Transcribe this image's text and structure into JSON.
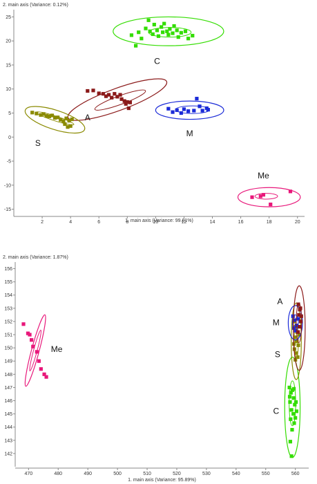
{
  "chart_data": [
    {
      "type": "scatter",
      "xlabel": "1. main axis (Variance: 99.81%)",
      "ylabel": "2. main axis (Variance: 0.12%)",
      "xlim": [
        0,
        20.5
      ],
      "ylim": [
        -16.5,
        26.5
      ],
      "xticks": [
        2,
        4,
        6,
        8,
        10,
        12,
        14,
        16,
        18,
        20
      ],
      "yticks": [
        -15,
        -10,
        -5,
        0,
        5,
        10,
        15,
        20,
        25
      ],
      "series": [
        {
          "name": "C",
          "color": "#33dd00",
          "ellipse": {
            "cx": 10.9,
            "cy": 22.0,
            "rx": 3.9,
            "ry": 3.0,
            "angle": 0
          },
          "ellipse_inner": {
            "cx": 11.0,
            "cy": 21.8,
            "rx": 1.5,
            "ry": 1.0,
            "angle": 0
          },
          "label_pos": [
            10.1,
            15.2
          ],
          "points": [
            [
              8.3,
              21.2
            ],
            [
              8.6,
              19.0
            ],
            [
              8.8,
              21.8
            ],
            [
              9.0,
              20.5
            ],
            [
              9.3,
              22.6
            ],
            [
              9.5,
              24.3
            ],
            [
              9.6,
              22.0
            ],
            [
              9.8,
              21.4
            ],
            [
              9.9,
              23.4
            ],
            [
              10.1,
              22.2
            ],
            [
              10.2,
              21.0
            ],
            [
              10.4,
              22.9
            ],
            [
              10.5,
              21.8
            ],
            [
              10.6,
              23.6
            ],
            [
              10.8,
              22.0
            ],
            [
              10.9,
              21.3
            ],
            [
              11.0,
              22.5
            ],
            [
              11.2,
              21.6
            ],
            [
              11.3,
              23.1
            ],
            [
              11.5,
              22.2
            ],
            [
              11.6,
              20.8
            ],
            [
              11.8,
              21.7
            ],
            [
              12.1,
              22.0
            ],
            [
              12.3,
              20.5
            ],
            [
              12.6,
              21.1
            ]
          ]
        },
        {
          "name": "A",
          "color": "#8b1a1a",
          "ellipse": {
            "cx": 7.3,
            "cy": 7.8,
            "rx": 3.7,
            "ry": 2.3,
            "angle": 20
          },
          "ellipse_inner": {
            "cx": 7.5,
            "cy": 7.7,
            "rx": 1.9,
            "ry": 0.9,
            "angle": 20
          },
          "label_pos": [
            5.2,
            3.5
          ],
          "points": [
            [
              5.2,
              9.6
            ],
            [
              5.6,
              9.7
            ],
            [
              6.0,
              9.1
            ],
            [
              6.3,
              9.0
            ],
            [
              6.5,
              8.5
            ],
            [
              6.7,
              8.8
            ],
            [
              6.9,
              8.2
            ],
            [
              7.1,
              9.0
            ],
            [
              7.3,
              8.4
            ],
            [
              7.5,
              8.8
            ],
            [
              7.6,
              7.9
            ],
            [
              7.8,
              7.5
            ],
            [
              7.9,
              6.9
            ],
            [
              8.0,
              7.3
            ],
            [
              8.1,
              6.0
            ],
            [
              8.2,
              7.2
            ]
          ]
        },
        {
          "name": "M",
          "color": "#1b2bd8",
          "ellipse": {
            "cx": 12.4,
            "cy": 5.6,
            "rx": 2.4,
            "ry": 1.9,
            "angle": 0
          },
          "ellipse_inner": {
            "cx": 12.6,
            "cy": 5.7,
            "rx": 1.2,
            "ry": 0.8,
            "angle": 0
          },
          "label_pos": [
            12.4,
            0.2
          ],
          "points": [
            [
              10.9,
              5.9
            ],
            [
              11.2,
              5.2
            ],
            [
              11.5,
              5.6
            ],
            [
              11.8,
              5.0
            ],
            [
              12.0,
              5.8
            ],
            [
              12.3,
              5.4
            ],
            [
              12.7,
              5.5
            ],
            [
              12.9,
              8.0
            ],
            [
              13.1,
              6.4
            ],
            [
              13.3,
              5.5
            ],
            [
              13.6,
              6.0
            ],
            [
              13.7,
              5.7
            ]
          ]
        },
        {
          "name": "S",
          "color": "#8a8a00",
          "ellipse": {
            "cx": 2.9,
            "cy": 3.6,
            "rx": 2.2,
            "ry": 2.0,
            "angle": -18
          },
          "ellipse_inner": {
            "cx": 2.9,
            "cy": 3.9,
            "rx": 1.4,
            "ry": 0.5,
            "angle": -18
          },
          "label_pos": [
            1.7,
            -1.8
          ],
          "points": [
            [
              1.3,
              5.1
            ],
            [
              1.6,
              4.9
            ],
            [
              1.9,
              4.6
            ],
            [
              2.1,
              4.8
            ],
            [
              2.3,
              4.4
            ],
            [
              2.5,
              4.3
            ],
            [
              2.7,
              4.5
            ],
            [
              2.9,
              4.0
            ],
            [
              3.1,
              4.1
            ],
            [
              3.3,
              3.6
            ],
            [
              3.5,
              3.3
            ],
            [
              3.6,
              2.7
            ],
            [
              3.7,
              3.9
            ],
            [
              3.8,
              2.1
            ],
            [
              3.9,
              3.4
            ],
            [
              4.0,
              2.3
            ],
            [
              4.1,
              3.7
            ]
          ]
        },
        {
          "name": "Me",
          "color": "#e8177a",
          "ellipse": {
            "cx": 18.0,
            "cy": -12.5,
            "rx": 2.2,
            "ry": 2.0,
            "angle": 0
          },
          "ellipse_inner": {
            "cx": 17.8,
            "cy": -12.3,
            "rx": 0.8,
            "ry": 0.6,
            "angle": 0
          },
          "label_pos": [
            17.6,
            -8.6
          ],
          "points": [
            [
              16.8,
              -12.5
            ],
            [
              17.4,
              -12.3
            ],
            [
              17.6,
              -12.0
            ],
            [
              18.1,
              -14.0
            ],
            [
              19.5,
              -11.3
            ]
          ]
        }
      ]
    },
    {
      "type": "scatter",
      "xlabel": "1. main axis (Variance: 95.89%)",
      "ylabel": "2. main axis (Variance: 1.87%)",
      "xlim": [
        465.5,
        564.5
      ],
      "ylim": [
        141.0,
        156.5
      ],
      "xticks": [
        470,
        480,
        490,
        500,
        510,
        520,
        530,
        540,
        550,
        560
      ],
      "yticks": [
        142,
        143,
        144,
        145,
        146,
        147,
        148,
        149,
        150,
        151,
        152,
        153,
        154,
        155,
        156
      ],
      "series": [
        {
          "name": "Me",
          "color": "#e8177a",
          "ellipse": {
            "cx": 472.3,
            "cy": 149.8,
            "rx": 1.3,
            "ry": 2.8,
            "angle": -15
          },
          "ellipse_inner": {
            "cx": 472.3,
            "cy": 149.8,
            "rx": 0.6,
            "ry": 1.6,
            "angle": -15
          },
          "label_pos": [
            479.5,
            149.7
          ],
          "points": [
            [
              468.3,
              151.8
            ],
            [
              469.8,
              151.1
            ],
            [
              470.4,
              151.0
            ],
            [
              471.0,
              150.6
            ],
            [
              471.5,
              150.1
            ],
            [
              472.8,
              149.7
            ],
            [
              473.5,
              149.0
            ],
            [
              474.2,
              148.4
            ],
            [
              475.3,
              148.0
            ],
            [
              476.0,
              147.8
            ]
          ]
        },
        {
          "name": "C",
          "color": "#33dd00",
          "ellipse": {
            "cx": 559.0,
            "cy": 145.5,
            "rx": 2.6,
            "ry": 3.8,
            "angle": 0
          },
          "ellipse_inner": {
            "cx": 559.0,
            "cy": 145.8,
            "rx": 1.1,
            "ry": 1.7,
            "angle": 0
          },
          "label_pos": [
            553.5,
            145.0
          ],
          "points": [
            [
              558.0,
              147.0
            ],
            [
              558.5,
              146.6
            ],
            [
              559.0,
              146.8
            ],
            [
              559.4,
              146.2
            ],
            [
              558.2,
              145.9
            ],
            [
              559.8,
              145.7
            ],
            [
              558.7,
              145.3
            ],
            [
              559.3,
              145.0
            ],
            [
              560.0,
              144.7
            ],
            [
              558.4,
              144.6
            ],
            [
              559.6,
              144.3
            ],
            [
              560.2,
              145.9
            ],
            [
              558.9,
              143.8
            ],
            [
              558.3,
              142.9
            ],
            [
              558.7,
              141.8
            ],
            [
              559.5,
              146.9
            ],
            [
              560.4,
              145.2
            ],
            [
              558.1,
              146.3
            ]
          ]
        },
        {
          "name": "S",
          "color": "#8a8a00",
          "ellipse": {
            "cx": 560.3,
            "cy": 150.5,
            "rx": 1.7,
            "ry": 2.9,
            "angle": 0
          },
          "ellipse_inner": {
            "cx": 560.3,
            "cy": 150.5,
            "rx": 0.7,
            "ry": 1.3,
            "angle": 0
          },
          "label_pos": [
            554.0,
            149.3
          ],
          "points": [
            [
              559.6,
              152.0
            ],
            [
              560.1,
              151.6
            ],
            [
              560.6,
              151.2
            ],
            [
              559.9,
              150.8
            ],
            [
              560.4,
              150.5
            ],
            [
              561.0,
              150.2
            ],
            [
              559.7,
              149.9
            ],
            [
              560.3,
              149.6
            ],
            [
              560.8,
              149.3
            ],
            [
              559.5,
              150.3
            ],
            [
              561.3,
              151.0
            ],
            [
              560.0,
              149.1
            ]
          ]
        },
        {
          "name": "M",
          "color": "#1b2bd8",
          "ellipse": {
            "cx": 560.0,
            "cy": 151.9,
            "rx": 2.4,
            "ry": 1.3,
            "angle": 0
          },
          "ellipse_inner": {
            "cx": 560.0,
            "cy": 151.9,
            "rx": 1.0,
            "ry": 0.6,
            "angle": 0
          },
          "label_pos": [
            553.5,
            151.7
          ],
          "points": [
            [
              559.2,
              152.4
            ],
            [
              559.8,
              152.1
            ],
            [
              560.4,
              151.7
            ],
            [
              559.5,
              151.5
            ],
            [
              560.9,
              152.2
            ],
            [
              560.1,
              151.3
            ]
          ]
        },
        {
          "name": "A",
          "color": "#8b1a1a",
          "ellipse": {
            "cx": 561.3,
            "cy": 151.5,
            "rx": 2.0,
            "ry": 3.2,
            "angle": 0
          },
          "ellipse_inner": {
            "cx": 561.2,
            "cy": 151.9,
            "rx": 0.9,
            "ry": 1.5,
            "angle": 0
          },
          "label_pos": [
            554.8,
            153.3
          ],
          "points": [
            [
              561.0,
              153.3
            ],
            [
              561.5,
              152.9
            ],
            [
              561.2,
              152.5
            ],
            [
              561.8,
              152.0
            ],
            [
              561.4,
              151.6
            ],
            [
              560.9,
              151.2
            ],
            [
              561.7,
              153.0
            ],
            [
              562.0,
              152.4
            ]
          ]
        }
      ]
    }
  ]
}
